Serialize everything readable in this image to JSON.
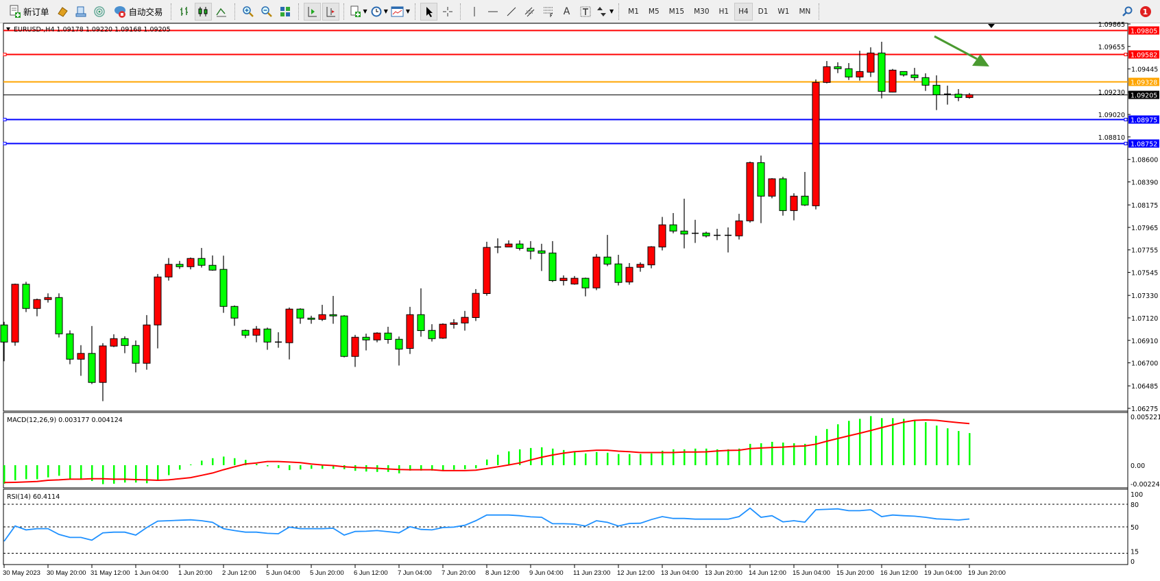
{
  "toolbar": {
    "new_order_label": "新订单",
    "auto_trading_label": "自动交易",
    "timeframes": [
      "M1",
      "M5",
      "M15",
      "M30",
      "H1",
      "H4",
      "D1",
      "W1",
      "MN"
    ],
    "active_timeframe": "H4",
    "text_tool_label": "A",
    "notification_count": "1"
  },
  "chart": {
    "header": "EURUSD-,H4  1.09178 1.09220 1.09168 1.09205",
    "colors": {
      "bull": "#ff0000",
      "bear": "#00ff00",
      "outline": "#000000",
      "arrow": "#4a9a30"
    },
    "price_axis_labels": [
      "1.09865",
      "1.09655",
      "1.09445",
      "1.09230",
      "1.09020",
      "1.08810",
      "1.08600",
      "1.08390",
      "1.08175",
      "1.07965",
      "1.07755",
      "1.07545",
      "1.07330",
      "1.07120",
      "1.06910",
      "1.06700",
      "1.06485",
      "1.06275"
    ],
    "horizontal_lines": [
      {
        "price": 1.09805,
        "label": "1.09805",
        "color": "#ff0000",
        "markers": false
      },
      {
        "price": 1.09582,
        "label": "1.09582",
        "color": "#ff0000",
        "markers": true
      },
      {
        "price": 1.09328,
        "label": "1.09328",
        "color": "#ffa500",
        "markers": false
      },
      {
        "price": 1.09205,
        "label": "1.09205",
        "color": "#000000",
        "markers": false
      },
      {
        "price": 1.08975,
        "label": "1.08975",
        "color": "#0000ff",
        "markers": true
      },
      {
        "price": 1.08752,
        "label": "1.08752",
        "color": "#0000ff",
        "markers": true
      }
    ],
    "time_labels": [
      "30 May 2023",
      "30 May 20:00",
      "31 May 12:00",
      "1 Jun 04:00",
      "1 Jun 20:00",
      "2 Jun 12:00",
      "5 Jun 04:00",
      "5 Jun 20:00",
      "6 Jun 12:00",
      "7 Jun 04:00",
      "7 Jun 20:00",
      "8 Jun 12:00",
      "9 Jun 04:00",
      "11 Jun 23:00",
      "12 Jun 12:00",
      "13 Jun 04:00",
      "13 Jun 20:00",
      "14 Jun 12:00",
      "15 Jun 04:00",
      "15 Jun 20:00",
      "16 Jun 12:00",
      "19 Jun 04:00",
      "19 Jun 20:00"
    ]
  },
  "chart_data": [
    {
      "type": "candlestick",
      "symbol": "EURUSD-",
      "timeframe": "H4",
      "ylim": [
        1.06275,
        1.09865
      ],
      "ohlc": [
        [
          1.07054,
          1.07083,
          1.06715,
          1.06894
        ],
        [
          1.06894,
          1.0744,
          1.0686,
          1.07434
        ],
        [
          1.07434,
          1.07457,
          1.07174,
          1.07208
        ],
        [
          1.07208,
          1.073,
          1.07135,
          1.07291
        ],
        [
          1.07291,
          1.07349,
          1.07263,
          1.0731
        ],
        [
          1.0731,
          1.07349,
          1.06937,
          1.06971
        ],
        [
          1.06971,
          1.07003,
          1.06687,
          1.06734
        ],
        [
          1.06734,
          1.06865,
          1.06579,
          1.06788
        ],
        [
          1.06788,
          1.07044,
          1.06502,
          1.06517
        ],
        [
          1.06517,
          1.06884,
          1.06342,
          1.06858
        ],
        [
          1.06856,
          1.06967,
          1.06847,
          1.06926
        ],
        [
          1.06926,
          1.06948,
          1.0679,
          1.06862
        ],
        [
          1.06862,
          1.06909,
          1.06611,
          1.06696
        ],
        [
          1.06696,
          1.07146,
          1.06636,
          1.07054
        ],
        [
          1.07054,
          1.0753,
          1.06835,
          1.07502
        ],
        [
          1.07502,
          1.07679,
          1.07468,
          1.0762
        ],
        [
          1.0762,
          1.07652,
          1.07577,
          1.07598
        ],
        [
          1.07598,
          1.07684,
          1.07573,
          1.07675
        ],
        [
          1.07675,
          1.07773,
          1.0759,
          1.07611
        ],
        [
          1.07611,
          1.07703,
          1.0756,
          1.07566
        ],
        [
          1.07573,
          1.07701,
          1.07167,
          1.07227
        ],
        [
          1.07227,
          1.07236,
          1.07046,
          1.07118
        ],
        [
          1.07003,
          1.07012,
          1.06931,
          1.06958
        ],
        [
          1.06958,
          1.07044,
          1.06892,
          1.07016
        ],
        [
          1.07016,
          1.07029,
          1.06822,
          1.06894
        ],
        [
          1.06894,
          1.06986,
          1.06841,
          1.06892
        ],
        [
          1.06888,
          1.07217,
          1.06732,
          1.07202
        ],
        [
          1.07202,
          1.0721,
          1.07065,
          1.07118
        ],
        [
          1.07118,
          1.0714,
          1.07065,
          1.07106
        ],
        [
          1.07106,
          1.07242,
          1.07091,
          1.0715
        ],
        [
          1.0715,
          1.07325,
          1.07065,
          1.07138
        ],
        [
          1.07138,
          1.07146,
          1.06751,
          1.0676
        ],
        [
          1.0676,
          1.06961,
          1.06662,
          1.06939
        ],
        [
          1.06939,
          1.06973,
          1.06816,
          1.06914
        ],
        [
          1.06914,
          1.06986,
          1.06892,
          1.06978
        ],
        [
          1.06978,
          1.07037,
          1.06879,
          1.06918
        ],
        [
          1.0692,
          1.06946,
          1.06675,
          1.06828
        ],
        [
          1.06835,
          1.07223,
          1.06783,
          1.0715
        ],
        [
          1.0715,
          1.07396,
          1.06944,
          1.07001
        ],
        [
          1.07003,
          1.07061,
          1.06899,
          1.06926
        ],
        [
          1.06931,
          1.07069,
          1.06924,
          1.07061
        ],
        [
          1.07059,
          1.07108,
          1.0702,
          1.07074
        ],
        [
          1.07072,
          1.07185,
          1.07001,
          1.07125
        ],
        [
          1.07123,
          1.07389,
          1.07091,
          1.07349
        ],
        [
          1.07347,
          1.07831,
          1.07327,
          1.07778
        ],
        [
          1.07778,
          1.07863,
          1.07724,
          1.07782
        ],
        [
          1.07782,
          1.07844,
          1.0778,
          1.0781
        ],
        [
          1.0781,
          1.07844,
          1.0775,
          1.07769
        ],
        [
          1.07771,
          1.07837,
          1.07667,
          1.07743
        ],
        [
          1.07746,
          1.07812,
          1.07558,
          1.07724
        ],
        [
          1.07726,
          1.07837,
          1.07455,
          1.07468
        ],
        [
          1.07468,
          1.07517,
          1.07423,
          1.0749
        ],
        [
          1.07436,
          1.07511,
          1.0743,
          1.0749
        ],
        [
          1.0749,
          1.07496,
          1.07321,
          1.074
        ],
        [
          1.074,
          1.07716,
          1.07379,
          1.07688
        ],
        [
          1.07688,
          1.07895,
          1.07603,
          1.07622
        ],
        [
          1.07624,
          1.07709,
          1.07423,
          1.07451
        ],
        [
          1.07455,
          1.07632,
          1.0743,
          1.07592
        ],
        [
          1.07592,
          1.07639,
          1.07551,
          1.0762
        ],
        [
          1.07615,
          1.0779,
          1.07583,
          1.07784
        ],
        [
          1.07782,
          1.08063,
          1.0775,
          1.07989
        ],
        [
          1.07989,
          1.08099,
          1.0791,
          1.07931
        ],
        [
          1.07931,
          1.08233,
          1.07769,
          1.07903
        ],
        [
          1.07903,
          1.08036,
          1.0782,
          1.0791
        ],
        [
          1.07912,
          1.07925,
          1.07871,
          1.07886
        ],
        [
          1.07886,
          1.07952,
          1.07846,
          1.07891
        ],
        [
          1.07891,
          1.07965,
          1.07731,
          1.07886
        ],
        [
          1.07886,
          1.08092,
          1.07852,
          1.08026
        ],
        [
          1.08026,
          1.0858,
          1.0801,
          1.0857
        ],
        [
          1.0857,
          1.08636,
          1.08005,
          1.08257
        ],
        [
          1.08257,
          1.08425,
          1.08237,
          1.08419
        ],
        [
          1.08419,
          1.08438,
          1.08075,
          1.08122
        ],
        [
          1.08122,
          1.08284,
          1.08031,
          1.08257
        ],
        [
          1.08257,
          1.08483,
          1.08165,
          1.08174
        ],
        [
          1.08167,
          1.09347,
          1.08133,
          1.09319
        ],
        [
          1.09319,
          1.09519,
          1.0931,
          1.09466
        ],
        [
          1.09466,
          1.09507,
          1.09406,
          1.09447
        ],
        [
          1.09447,
          1.095,
          1.09342,
          1.0937
        ],
        [
          1.0937,
          1.09615,
          1.09336,
          1.09421
        ],
        [
          1.09415,
          1.09647,
          1.0937,
          1.09594
        ],
        [
          1.09594,
          1.09699,
          1.0917,
          1.09236
        ],
        [
          1.09229,
          1.09445,
          1.09225,
          1.09434
        ],
        [
          1.09421,
          1.09421,
          1.09374,
          1.09389
        ],
        [
          1.09389,
          1.09455,
          1.09336,
          1.09364
        ],
        [
          1.09364,
          1.09404,
          1.0924,
          1.09293
        ],
        [
          1.09293,
          1.09385,
          1.09061,
          1.09204
        ],
        [
          1.09204,
          1.09289,
          1.09112,
          1.0921
        ],
        [
          1.0921,
          1.09257,
          1.09144,
          1.09178
        ],
        [
          1.09178,
          1.0922,
          1.09168,
          1.09205
        ]
      ]
    },
    {
      "type": "bar",
      "label": "MACD(12,26,9) 0.003177 0.004124",
      "ylim": [
        -0.002244,
        0.005221
      ],
      "axis_labels": [
        "0.005221",
        "0.00",
        "-0.002244"
      ],
      "histogram": [
        -0.00184,
        -0.0015,
        -0.00139,
        -0.00139,
        -0.00121,
        -0.00105,
        -0.00139,
        -0.00139,
        -0.00157,
        -0.00188,
        -0.00184,
        -0.00172,
        -0.00172,
        -0.00179,
        -0.0015,
        -0.00099,
        -0.00045,
        7e-05,
        0.00045,
        0.00069,
        0.00085,
        0.00069,
        0.00052,
        0.00013,
        -0.00011,
        -0.00029,
        -0.00049,
        -0.00043,
        -0.00036,
        -0.00036,
        -0.00036,
        -0.0004,
        -0.00056,
        -0.00063,
        -0.00067,
        -0.00067,
        -0.00081,
        -0.00054,
        -0.00054,
        -0.00054,
        -0.00049,
        -0.00045,
        -0.0004,
        -0.00031,
        0.00056,
        0.00103,
        0.00137,
        0.00157,
        0.0017,
        0.00177,
        0.00164,
        0.0015,
        0.00134,
        0.00116,
        0.0013,
        0.00123,
        0.0011,
        0.0011,
        0.0011,
        0.00116,
        0.00143,
        0.00157,
        0.00157,
        0.00164,
        0.00164,
        0.00157,
        0.00157,
        0.00164,
        0.00211,
        0.00217,
        0.00231,
        0.00224,
        0.00217,
        0.00211,
        0.00291,
        0.00358,
        0.00405,
        0.00439,
        0.00459,
        0.00486,
        0.00466,
        0.00466,
        0.00459,
        0.00439,
        0.00426,
        0.00392,
        0.00365,
        0.00338,
        0.003177
      ],
      "signal": [
        -0.00172,
        -0.0017,
        -0.00166,
        -0.00161,
        -0.0015,
        -0.00146,
        -0.00139,
        -0.00139,
        -0.00134,
        -0.00134,
        -0.00139,
        -0.00139,
        -0.00143,
        -0.00146,
        -0.0015,
        -0.00146,
        -0.00134,
        -0.00123,
        -0.00101,
        -0.00078,
        -0.00045,
        -0.00016,
        0.00011,
        0.00022,
        0.00036,
        0.00036,
        0.00031,
        0.00025,
        0.00011,
        2e-05,
        -4e-05,
        -0.00016,
        -0.00022,
        -0.00027,
        -0.00031,
        -0.00038,
        -0.00043,
        -0.00045,
        -0.00045,
        -0.00045,
        -0.00054,
        -0.00054,
        -0.00054,
        -0.00049,
        -0.00034,
        -0.00016,
        2e-05,
        0.00022,
        0.00052,
        0.00078,
        0.00101,
        0.00119,
        0.00134,
        0.00141,
        0.00148,
        0.00148,
        0.00139,
        0.00134,
        0.00125,
        0.00125,
        0.00125,
        0.00125,
        0.0013,
        0.0013,
        0.00132,
        0.00141,
        0.00146,
        0.00148,
        0.00164,
        0.0017,
        0.00175,
        0.00179,
        0.00186,
        0.0019,
        0.00208,
        0.00237,
        0.00264,
        0.00291,
        0.00316,
        0.00343,
        0.00372,
        0.00399,
        0.00426,
        0.00444,
        0.00448,
        0.00444,
        0.00432,
        0.00421,
        0.004124
      ],
      "colors": {
        "histogram": "#00ff00",
        "signal": "#ff0000"
      }
    },
    {
      "type": "line",
      "label": "RSI(14) 60.4114",
      "ylim": [
        0,
        100
      ],
      "levels": [
        80,
        50,
        15
      ],
      "axis_labels": [
        "100",
        "80",
        "50",
        "15",
        "0"
      ],
      "values": [
        30.9,
        51.2,
        46.0,
        47.6,
        47.6,
        40.0,
        36.0,
        36.0,
        32.4,
        42.1,
        43.0,
        43.0,
        39.1,
        49.1,
        57.6,
        58.2,
        58.8,
        59.4,
        58.2,
        56.0,
        47.6,
        45.1,
        43.0,
        43.0,
        41.5,
        40.9,
        49.7,
        47.6,
        47.6,
        47.6,
        48.2,
        39.1,
        43.9,
        44.2,
        45.1,
        43.6,
        42.1,
        50.3,
        46.6,
        46.0,
        49.1,
        49.7,
        52.1,
        58.2,
        65.7,
        65.7,
        65.7,
        64.8,
        63.3,
        62.7,
        54.2,
        54.2,
        53.6,
        51.2,
        58.2,
        56.0,
        51.2,
        54.5,
        54.8,
        59.7,
        63.6,
        61.2,
        61.2,
        60.3,
        60.3,
        60.3,
        60.3,
        63.6,
        74.8,
        62.7,
        64.8,
        56.6,
        58.2,
        56.3,
        72.7,
        73.3,
        73.9,
        71.5,
        71.5,
        72.7,
        63.6,
        65.7,
        64.8,
        64.2,
        62.7,
        60.6,
        60.0,
        59.1,
        60.4114
      ],
      "colors": {
        "line": "#1e90ff"
      }
    }
  ]
}
